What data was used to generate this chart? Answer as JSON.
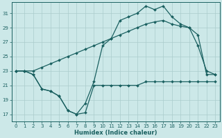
{
  "xlabel": "Humidex (Indice chaleur)",
  "bg_color": "#cce8e8",
  "grid_color": "#aacccc",
  "line_color": "#1a6060",
  "xlim": [
    -0.5,
    23.5
  ],
  "ylim": [
    16.0,
    32.5
  ],
  "yticks": [
    17,
    19,
    21,
    23,
    25,
    27,
    29,
    31
  ],
  "xticks": [
    0,
    1,
    2,
    3,
    4,
    5,
    6,
    7,
    8,
    9,
    10,
    11,
    12,
    13,
    14,
    15,
    16,
    17,
    18,
    19,
    20,
    21,
    22,
    23
  ],
  "line_top_x": [
    0,
    1,
    2,
    3,
    4,
    5,
    6,
    7,
    8,
    9,
    10,
    11,
    12,
    13,
    14,
    15,
    16,
    17,
    18,
    19,
    20,
    21,
    22,
    23
  ],
  "line_top_y": [
    23,
    23,
    22.5,
    20.5,
    20.2,
    19.5,
    17.5,
    17.0,
    18.5,
    21.5,
    26.5,
    27.5,
    30.0,
    30.5,
    31.0,
    32.0,
    31.5,
    32.0,
    30.5,
    29.5,
    29.0,
    26.5,
    23.0,
    22.5
  ],
  "line_mid_x": [
    0,
    1,
    2,
    3,
    4,
    5,
    6,
    7,
    8,
    9,
    10,
    11,
    12,
    13,
    14,
    15,
    16,
    17,
    18,
    19,
    20,
    21,
    22,
    23
  ],
  "line_mid_y": [
    23,
    23,
    23.0,
    23.5,
    24.0,
    24.5,
    25.0,
    25.5,
    26.0,
    26.5,
    27.0,
    27.5,
    28.0,
    28.5,
    29.0,
    29.5,
    29.8,
    30.0,
    29.5,
    29.2,
    29.0,
    28.0,
    22.5,
    22.5
  ],
  "line_bot_x": [
    0,
    1,
    2,
    3,
    4,
    5,
    6,
    7,
    8,
    9,
    10,
    11,
    12,
    13,
    14,
    15,
    16,
    17,
    18,
    19,
    20,
    21,
    22,
    23
  ],
  "line_bot_y": [
    23,
    23,
    22.5,
    20.5,
    20.2,
    19.5,
    17.5,
    17.0,
    17.2,
    21.0,
    21.0,
    21.0,
    21.0,
    21.0,
    21.0,
    21.5,
    21.5,
    21.5,
    21.5,
    21.5,
    21.5,
    21.5,
    21.5,
    21.5
  ]
}
